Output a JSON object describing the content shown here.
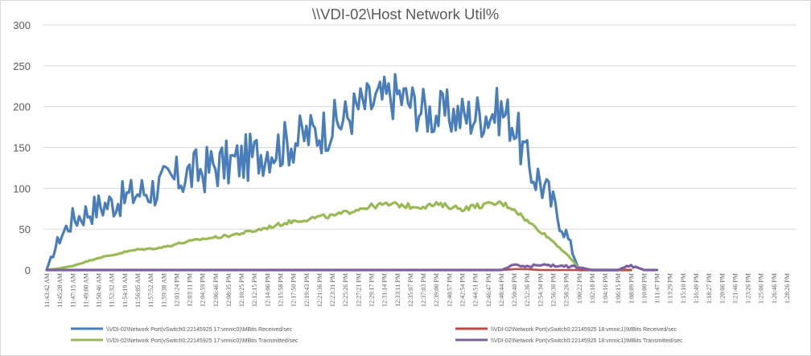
{
  "chart_data": {
    "type": "line",
    "title": "\\\\VDI-02\\Host Network Util%",
    "xlabel": "",
    "ylabel": "",
    "ylim": [
      0,
      300
    ],
    "yticks": [
      0,
      50,
      100,
      150,
      200,
      250,
      300
    ],
    "grid": true,
    "legend_position": "bottom",
    "categories": [
      "11:43:42 AM",
      "11:45:28 AM",
      "11:47:15 AM",
      "11:49:00 AM",
      "11:50:46 AM",
      "11:52:32 AM",
      "11:54:19 AM",
      "11:56:05 AM",
      "11:57:52 AM",
      "11:59:38 AM",
      "12:01:24 PM",
      "12:03:11 PM",
      "12:04:59 PM",
      "12:06:46 PM",
      "12:08:35 PM",
      "12:10:25 PM",
      "12:12:15 PM",
      "12:14:06 PM",
      "12:15:58 PM",
      "12:17:50 PM",
      "12:19:43 PM",
      "12:21:36 PM",
      "12:23:31 PM",
      "12:25:26 PM",
      "12:27:21 PM",
      "12:29:17 PM",
      "12:31:14 PM",
      "12:33:11 PM",
      "12:35:07 PM",
      "12:37:03 PM",
      "12:39:00 PM",
      "12:40:57 PM",
      "12:42:54 PM",
      "12:44:51 PM",
      "12:46:47 PM",
      "12:48:44 PM",
      "12:50:40 PM",
      "12:52:36 PM",
      "12:54:34 PM",
      "12:56:30 PM",
      "12:58:26 PM",
      "1:00:22 PM",
      "1:02:18 PM",
      "1:04:16 PM",
      "1:06:15 PM",
      "1:08:09 PM",
      "1:10:00 PM",
      "1:11:47 PM",
      "1:13:29 PM",
      "1:15:10 PM",
      "1:16:49 PM",
      "1:18:27 PM",
      "1:20:06 PM",
      "1:21:46 PM",
      "1:23:26 PM",
      "1:25:06 PM",
      "1:26:46 PM",
      "1:28:26 PM"
    ],
    "series": [
      {
        "name": "\\\\VDI-02\\Network Port(vSwitch0:22145925 17:vmnic0)\\MBits Received/sec",
        "color": "#4a7ebb",
        "values": [
          0,
          40,
          62,
          70,
          78,
          82,
          88,
          95,
          98,
          105,
          112,
          118,
          122,
          128,
          130,
          135,
          140,
          148,
          152,
          158,
          165,
          170,
          178,
          185,
          200,
          205,
          210,
          215,
          205,
          195,
          190,
          192,
          188,
          190,
          192,
          195,
          180,
          130,
          110,
          80,
          45,
          0,
          0,
          0,
          0,
          0,
          0,
          0,
          0,
          0,
          0,
          0,
          0,
          0,
          0,
          0,
          0,
          0
        ]
      },
      {
        "name": "\\\\VDI-02\\Network Port(vSwitch0:22145925 17:vmnic0)\\MBits Transmitted/sec",
        "color": "#98b954",
        "values": [
          0,
          2,
          5,
          10,
          15,
          18,
          22,
          25,
          26,
          28,
          32,
          35,
          38,
          40,
          42,
          45,
          48,
          52,
          56,
          60,
          62,
          65,
          66,
          70,
          75,
          78,
          80,
          80,
          78,
          78,
          80,
          78,
          75,
          78,
          80,
          82,
          75,
          60,
          48,
          35,
          20,
          2,
          0,
          0,
          0,
          0,
          0,
          0,
          0,
          0,
          0,
          0,
          0,
          0,
          0,
          0,
          0,
          0
        ]
      },
      {
        "name": "\\\\VDI-02\\Network Port(vSwitch0:22145925 18:vmnic1)\\MBits Received/sec",
        "color": "#be4b48",
        "values": [
          0,
          0,
          0,
          0,
          0,
          0,
          0,
          0,
          0,
          0,
          0,
          0,
          0,
          0,
          0,
          0,
          0,
          0,
          0,
          0,
          0,
          0,
          0,
          0,
          0,
          0,
          0,
          0,
          0,
          0,
          0,
          0,
          0,
          0,
          0,
          0,
          1,
          1,
          0,
          0,
          0,
          0,
          0,
          0,
          0,
          0,
          0,
          0,
          0,
          0,
          0,
          0,
          0,
          0,
          0,
          0,
          0,
          0
        ]
      },
      {
        "name": "\\\\VDI-02\\Network Port(vSwitch0:22145925 18:vmnic1)\\MBits Transmitted/sec",
        "color": "#7d60a0",
        "values": [
          0,
          0,
          0,
          0,
          0,
          0,
          0,
          0,
          0,
          0,
          0,
          0,
          0,
          0,
          0,
          0,
          0,
          0,
          0,
          0,
          0,
          0,
          0,
          0,
          0,
          0,
          0,
          0,
          0,
          0,
          0,
          0,
          0,
          0,
          0,
          0,
          6,
          5,
          6,
          5,
          5,
          3,
          0,
          0,
          0,
          6,
          0,
          0,
          0,
          0,
          0,
          0,
          0,
          0,
          0,
          0,
          0,
          0
        ]
      }
    ]
  },
  "legend": {
    "items": [
      {
        "label": "\\\\VDI-02\\Network Port(vSwitch0:22145925 17:vmnic0)\\MBits Received/sec",
        "color": "#4a7ebb"
      },
      {
        "label": "\\\\VDI-02\\Network Port(vSwitch0:22145925 18:vmnic1)\\MBits Received/sec",
        "color": "#be4b48"
      },
      {
        "label": "\\\\VDI-02\\Network Port(vSwitch0:22145925 17:vmnic0)\\MBits Transmitted/sec",
        "color": "#98b954"
      },
      {
        "label": "\\\\VDI-02\\Network Port(vSwitch0:22145925 18:vmnic1)\\MBits Transmitted/sec",
        "color": "#7d60a0"
      }
    ]
  }
}
